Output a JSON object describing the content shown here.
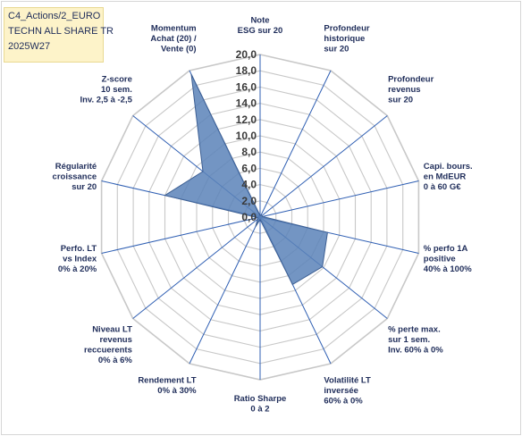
{
  "title": {
    "lines": [
      "C4_Actions/2_EURO",
      "TECHN ALL SHARE TR",
      "2025W27"
    ]
  },
  "colors": {
    "fill": "#5b82b8",
    "stroke": "#3d5f93",
    "grid": "#c8c8c8",
    "spoke": "#2f5fb3",
    "title_bg": "#fdf3c9"
  },
  "chart_data": {
    "type": "radar",
    "rmax": 20,
    "ticks": [
      "0,0",
      "2,0",
      "4,0",
      "6,0",
      "8,0",
      "10,0",
      "12,0",
      "14,0",
      "16,0",
      "18,0",
      "20,0"
    ],
    "axes": [
      {
        "label": [
          "Note",
          "ESG sur 20"
        ],
        "value": 0.2
      },
      {
        "label": [
          "Profondeur",
          "historique",
          "sur 20"
        ],
        "value": 0.3
      },
      {
        "label": [
          "Profondeur",
          "revenus",
          "sur 20"
        ],
        "value": 0.3
      },
      {
        "label": [
          "Capi. bours.",
          "en MdEUR",
          "0 à 60 G€"
        ],
        "value": 0.3
      },
      {
        "label": [
          "% perfo 1A",
          "positive",
          "40% à 100%"
        ],
        "value": 8.5
      },
      {
        "label": [
          "% perte max.",
          "sur 1 sem.",
          "Inv. 60% à 0%"
        ],
        "value": 9.8
      },
      {
        "label": [
          "Volatilité LT",
          "inversée",
          "60% à 0%"
        ],
        "value": 9.2
      },
      {
        "label": [
          "Ratio Sharpe",
          "0 à 2"
        ],
        "value": 0.3
      },
      {
        "label": [
          "Rendement LT",
          "0% à 30%"
        ],
        "value": 1.3
      },
      {
        "label": [
          "Niveau LT",
          "revenus",
          "reccuerents",
          "0% à 6%"
        ],
        "value": 0.4
      },
      {
        "label": [
          "Perfo. LT",
          "vs Index",
          "0% à 20%"
        ],
        "value": 0.3
      },
      {
        "label": [
          "Régularité",
          "croissance",
          "sur 20"
        ],
        "value": 12.0
      },
      {
        "label": [
          "Z-score",
          "10 sem.",
          "Inv. 2,5 à -2,5"
        ],
        "value": 9.0
      },
      {
        "label": [
          "Momentum",
          "Achat (20) /",
          "Vente (0)"
        ],
        "value": 19.5
      }
    ]
  }
}
